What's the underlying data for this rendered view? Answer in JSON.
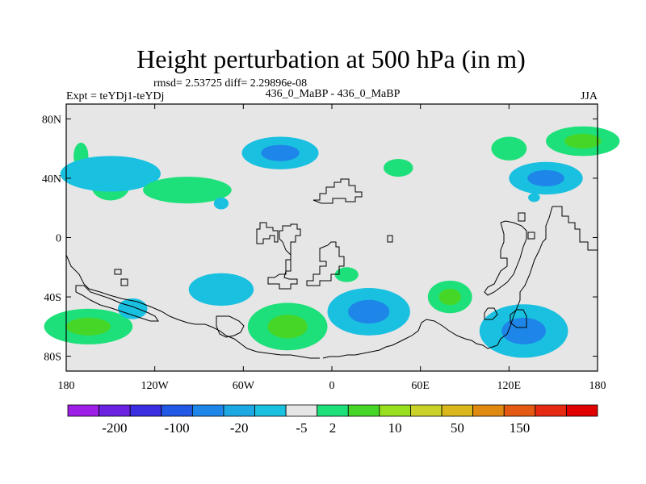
{
  "chart_data": {
    "type": "heatmap",
    "title": "Height perturbation at 500 hPa (in m)",
    "stats_label": "rmsd= 2.53725 diff= 2.29896e-08",
    "left_label": "Expt = teYDj1-teYDj",
    "center_label": "436_0_MaBP - 436_0_MaBP",
    "right_label": "JJA",
    "xlim": [
      -180,
      180
    ],
    "ylim": [
      -90,
      90
    ],
    "x_ticks": [
      {
        "value": -180,
        "label": "180"
      },
      {
        "value": -120,
        "label": "120W"
      },
      {
        "value": -60,
        "label": "60W"
      },
      {
        "value": 0,
        "label": "0"
      },
      {
        "value": 60,
        "label": "60E"
      },
      {
        "value": 120,
        "label": "120E"
      },
      {
        "value": 180,
        "label": "180"
      }
    ],
    "y_ticks": [
      {
        "value": 80,
        "label": "80N"
      },
      {
        "value": 40,
        "label": "40N"
      },
      {
        "value": 0,
        "label": "0"
      },
      {
        "value": -40,
        "label": "40S"
      },
      {
        "value": -80,
        "label": "80S"
      }
    ],
    "colorbar": {
      "colors": [
        "#9d1ee6",
        "#6a22e0",
        "#3a2ee0",
        "#2258e6",
        "#1e86e8",
        "#1ca8e2",
        "#1ac0e0",
        "#e6e6e6",
        "#1ee07a",
        "#46d628",
        "#98e01e",
        "#cad22a",
        "#dab81c",
        "#e08a12",
        "#e45a12",
        "#e62a12",
        "#e00000"
      ],
      "labels": [
        {
          "index": 1,
          "label": "-200"
        },
        {
          "index": 3,
          "label": "-100"
        },
        {
          "index": 5,
          "label": "-20"
        },
        {
          "index": 7,
          "label": "-5"
        },
        {
          "index": 8,
          "label": "2"
        },
        {
          "index": 10,
          "label": "10"
        },
        {
          "index": 12,
          "label": "50"
        },
        {
          "index": 14,
          "label": "150"
        }
      ]
    },
    "anomalies": [
      {
        "name": "north-pacific-low",
        "lon": -35,
        "lat": 57,
        "rx": 26,
        "ry": 11,
        "levels": [
          -5,
          -20
        ]
      },
      {
        "name": "north-atlantic-high-1",
        "lon": -170,
        "lat": 55,
        "rx": 5,
        "ry": 9,
        "levels": [
          2
        ]
      },
      {
        "name": "north-atlantic-high-2",
        "lon": -150,
        "lat": 35,
        "rx": 13,
        "ry": 10,
        "levels": [
          2
        ]
      },
      {
        "name": "atlantic-low-west",
        "lon": -150,
        "lat": 43,
        "rx": 34,
        "ry": 12,
        "levels": [
          -5
        ]
      },
      {
        "name": "eurasia-high",
        "lon": -98,
        "lat": 32,
        "rx": 30,
        "ry": 9,
        "levels": [
          2
        ]
      },
      {
        "name": "small-low-north",
        "lon": -75,
        "lat": 23,
        "rx": 5,
        "ry": 4,
        "levels": [
          -5
        ]
      },
      {
        "name": "siberia-high-east",
        "lon": 170,
        "lat": 65,
        "rx": 25,
        "ry": 10,
        "levels": [
          2,
          10
        ]
      },
      {
        "name": "pacific-high-north",
        "lon": 120,
        "lat": 60,
        "rx": 12,
        "ry": 8,
        "levels": [
          2
        ]
      },
      {
        "name": "pacific-high-mid",
        "lon": 45,
        "lat": 47,
        "rx": 10,
        "ry": 6,
        "levels": [
          2
        ]
      },
      {
        "name": "east-pacific-low",
        "lon": 145,
        "lat": 40,
        "rx": 25,
        "ry": 11,
        "levels": [
          -5,
          -20
        ]
      },
      {
        "name": "small-low-east",
        "lon": 137,
        "lat": 27,
        "rx": 4,
        "ry": 3,
        "levels": [
          -5
        ]
      },
      {
        "name": "south-high-west",
        "lon": -165,
        "lat": -60,
        "rx": 30,
        "ry": 12,
        "levels": [
          2,
          10
        ]
      },
      {
        "name": "south-low-west",
        "lon": -135,
        "lat": -48,
        "rx": 10,
        "ry": 7,
        "levels": [
          -5
        ]
      },
      {
        "name": "south-low-mid",
        "lon": -75,
        "lat": -35,
        "rx": 22,
        "ry": 11,
        "levels": [
          -5
        ]
      },
      {
        "name": "south-high-mid",
        "lon": -30,
        "lat": -60,
        "rx": 27,
        "ry": 16,
        "levels": [
          2,
          10
        ]
      },
      {
        "name": "south-high-small",
        "lon": 10,
        "lat": -25,
        "rx": 8,
        "ry": 5,
        "levels": [
          2
        ]
      },
      {
        "name": "south-low-center",
        "lon": 25,
        "lat": -50,
        "rx": 28,
        "ry": 16,
        "levels": [
          -5,
          -20
        ]
      },
      {
        "name": "south-high-east",
        "lon": 80,
        "lat": -40,
        "rx": 15,
        "ry": 11,
        "levels": [
          2,
          10
        ]
      },
      {
        "name": "south-low-east",
        "lon": 130,
        "lat": -63,
        "rx": 30,
        "ry": 18,
        "levels": [
          -5,
          -20
        ]
      }
    ]
  }
}
